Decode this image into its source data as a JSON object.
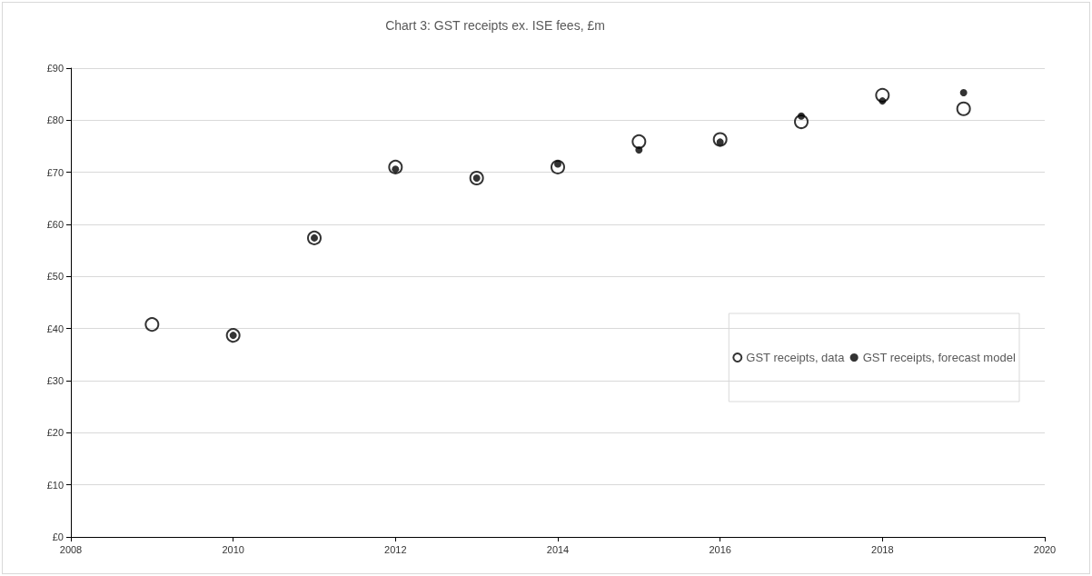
{
  "chart_data": {
    "type": "scatter",
    "title": "Chart 3: GST receipts ex. ISE fees, £m",
    "x": [
      2009,
      2010,
      2011,
      2012,
      2013,
      2014,
      2015,
      2016,
      2017,
      2018,
      2019
    ],
    "series": [
      {
        "name": "GST receipts, data",
        "color": "#000000",
        "values": [
          40.8,
          38.7,
          57.4,
          71.0,
          68.9,
          71.0,
          75.9,
          76.3,
          79.7,
          84.8,
          82.2
        ]
      },
      {
        "name": "GST receipts, forecast model",
        "color": "#000000",
        "values": [
          null,
          38.7,
          57.4,
          70.6,
          68.9,
          71.6,
          74.3,
          75.8,
          80.8,
          83.7,
          85.3
        ]
      }
    ],
    "xlim": [
      2008,
      2020
    ],
    "xticks": [
      2008,
      2010,
      2012,
      2014,
      2016,
      2018,
      2020
    ],
    "ylim": [
      0,
      90
    ],
    "yticks": [
      {
        "value": 0,
        "label": "£0"
      },
      {
        "value": 10,
        "label": "£10"
      },
      {
        "value": 20,
        "label": "£20"
      },
      {
        "value": 30,
        "label": "£30"
      },
      {
        "value": 40,
        "label": "£40"
      },
      {
        "value": 50,
        "label": "£50"
      },
      {
        "value": 60,
        "label": "£60"
      },
      {
        "value": 70,
        "label": "£70"
      },
      {
        "value": 80,
        "label": "£80"
      },
      {
        "value": 90,
        "label": "£90"
      }
    ],
    "grid": "y",
    "legend": "right",
    "marker": "circle"
  }
}
